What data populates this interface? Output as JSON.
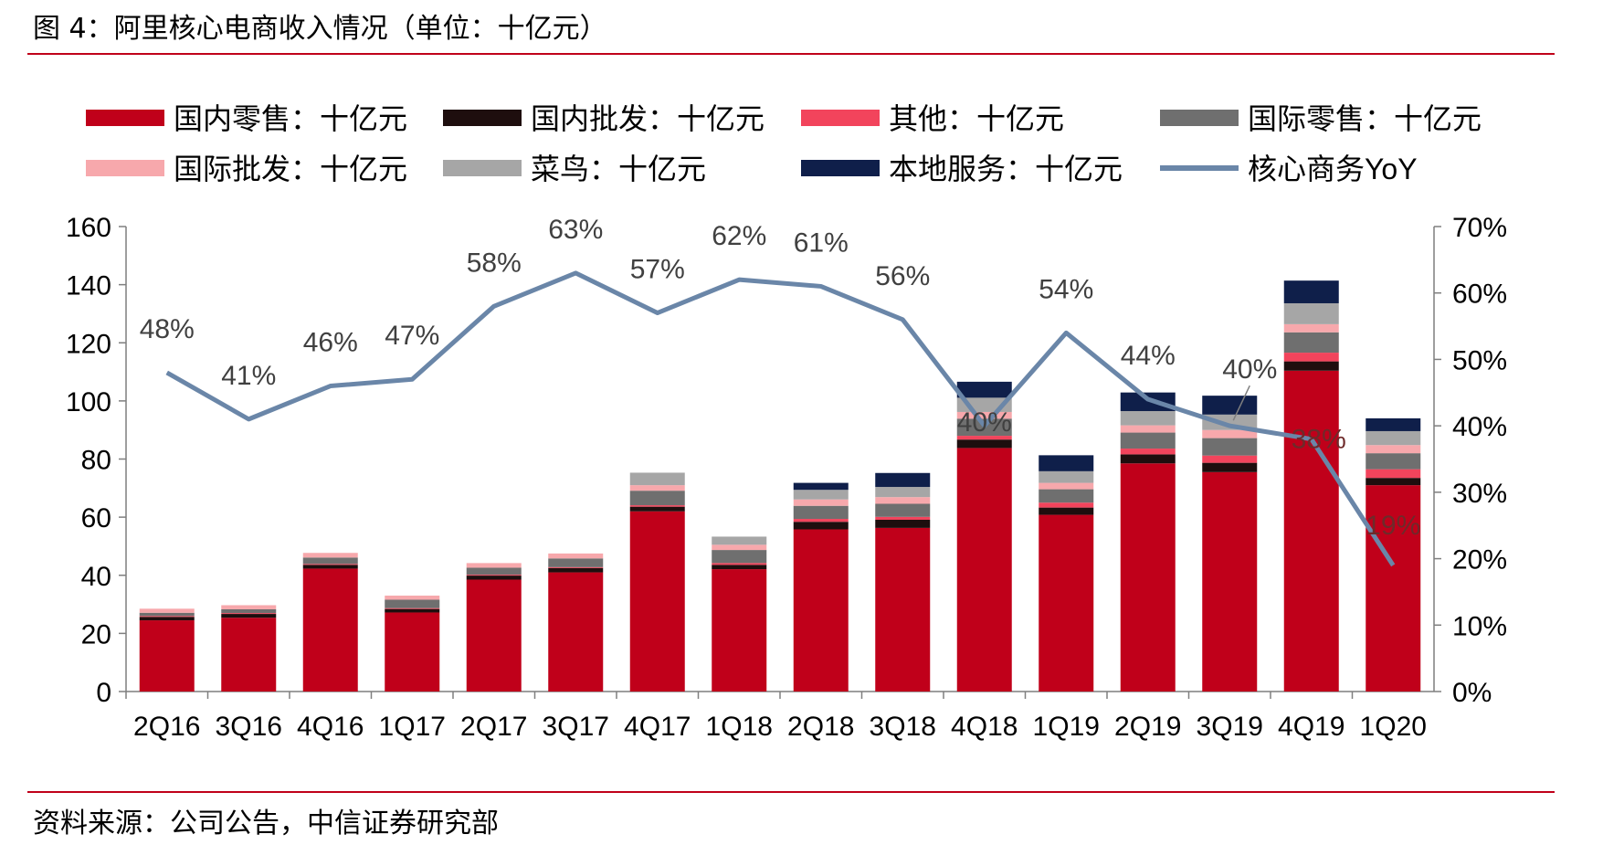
{
  "page": {
    "title": "图 4：阿里核心电商收入情况（单位：十亿元）",
    "source": "资料来源：公司公告，中信证券研究部"
  },
  "chart_data": {
    "type": "bar",
    "stacked": true,
    "title": "图 4：阿里核心电商收入情况（单位：十亿元）",
    "categories": [
      "2Q16",
      "3Q16",
      "4Q16",
      "1Q17",
      "2Q17",
      "3Q17",
      "4Q17",
      "1Q18",
      "2Q18",
      "3Q18",
      "4Q18",
      "1Q19",
      "2Q19",
      "3Q19",
      "4Q19",
      "1Q20"
    ],
    "ylim": [
      0,
      160
    ],
    "y_ticks": [
      0,
      20,
      40,
      60,
      80,
      100,
      120,
      140,
      160
    ],
    "y2lim": [
      0,
      0.7
    ],
    "y2_ticks": [
      0,
      0.1,
      0.2,
      0.3,
      0.4,
      0.5,
      0.6,
      0.7
    ],
    "y2_tick_labels": [
      "0%",
      "10%",
      "20%",
      "30%",
      "40%",
      "50%",
      "60%",
      "70%"
    ],
    "legend_position": "top",
    "series": [
      {
        "name": "国内零售：十亿元",
        "color": "#c0001a",
        "values": [
          24.5,
          25.4,
          42.3,
          27.2,
          38.5,
          41.0,
          62.0,
          42.1,
          55.8,
          56.3,
          83.8,
          60.8,
          78.5,
          75.5,
          110.4,
          71.0
        ]
      },
      {
        "name": "国内批发：十亿元",
        "color": "#1e0e0e",
        "values": [
          1.2,
          1.3,
          1.3,
          1.2,
          1.4,
          1.5,
          1.6,
          1.5,
          2.6,
          2.8,
          2.9,
          2.5,
          3.1,
          3.2,
          3.2,
          2.5
        ]
      },
      {
        "name": "其他：十亿元",
        "color": "#f2445c",
        "values": [
          0.3,
          0.3,
          0.3,
          0.3,
          0.3,
          0.3,
          0.5,
          0.6,
          1.0,
          1.0,
          1.3,
          1.7,
          2.0,
          2.5,
          3.0,
          3.0
        ]
      },
      {
        "name": "国际零售：十亿元",
        "color": "#6f6f6f",
        "values": [
          1.1,
          1.3,
          2.2,
          2.9,
          2.4,
          3.0,
          5.0,
          4.5,
          4.5,
          4.5,
          5.9,
          4.6,
          5.5,
          6.0,
          7.0,
          5.5
        ]
      },
      {
        "name": "国际批发：十亿元",
        "color": "#f7a8ac",
        "values": [
          1.4,
          1.4,
          1.6,
          1.4,
          1.6,
          1.7,
          1.9,
          1.8,
          2.2,
          2.3,
          2.3,
          2.2,
          2.5,
          2.8,
          2.8,
          2.8
        ]
      },
      {
        "name": "菜鸟：十亿元",
        "color": "#a6a6a6",
        "values": [
          0,
          0,
          0,
          0,
          0,
          0,
          4.3,
          2.8,
          3.3,
          3.5,
          4.9,
          4.0,
          4.9,
          5.3,
          7.2,
          4.8
        ]
      },
      {
        "name": "本地服务：十亿元",
        "color": "#0f1f4a",
        "values": [
          0,
          0,
          0,
          0,
          0,
          0,
          0,
          0,
          2.4,
          4.8,
          5.5,
          5.5,
          6.4,
          6.5,
          7.8,
          4.4
        ]
      },
      {
        "name": "核心商务YoY",
        "color": "#6a86a8",
        "type": "line",
        "axis": "right",
        "values": [
          0.48,
          0.41,
          0.46,
          0.47,
          0.58,
          0.63,
          0.57,
          0.62,
          0.61,
          0.56,
          0.4,
          0.54,
          0.44,
          0.4,
          0.38,
          0.19
        ],
        "labels": [
          "48%",
          "41%",
          "46%",
          "47%",
          "58%",
          "63%",
          "57%",
          "62%",
          "61%",
          "56%",
          "40%",
          "54%",
          "44%",
          "40%",
          "38%",
          "19%"
        ]
      }
    ]
  }
}
